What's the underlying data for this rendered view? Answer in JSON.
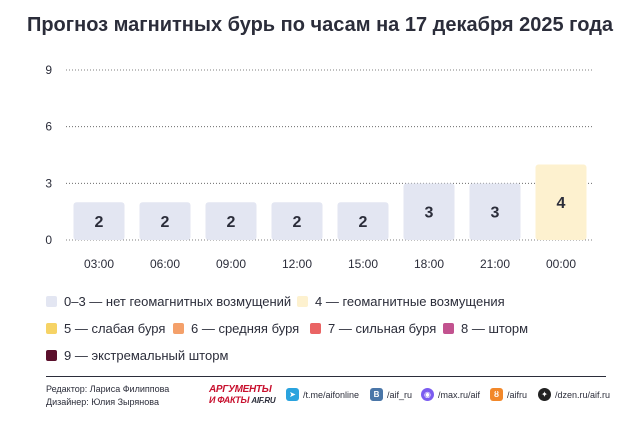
{
  "header": {
    "title": "Прогноз магнитных бурь по часам на 17 декабря 2025 года"
  },
  "chart_data": {
    "type": "bar",
    "title": "Прогноз магнитных бурь по часам на 17 декабря 2025 года",
    "categories": [
      "03:00",
      "06:00",
      "09:00",
      "12:00",
      "15:00",
      "18:00",
      "21:00",
      "00:00"
    ],
    "values": [
      2,
      2,
      2,
      2,
      2,
      3,
      3,
      4
    ],
    "data_labels": [
      "2",
      "2",
      "2",
      "2",
      "2",
      "3",
      "3",
      "4"
    ],
    "y_ticks": [
      "0",
      "3",
      "6",
      "9"
    ],
    "ylim": [
      0,
      9
    ],
    "grid": "dotted horizontal",
    "legend_placement": "bottom",
    "xlabel": "",
    "ylabel": "",
    "colors": {
      "0-3": "#e3e6f2",
      "4": "#fdf1cf",
      "grid": "#555555",
      "text": "#2b2d3a"
    }
  },
  "legend": [
    {
      "label": "0–3 — нет геомагнитных возмущений",
      "color": "#e3e6f2"
    },
    {
      "label": "4 — геомагнитные возмущения",
      "color": "#fdf1cf"
    },
    {
      "label": "5 — слабая буря",
      "color": "#f6d365"
    },
    {
      "label": "6 — средняя буря",
      "color": "#f4a06a"
    },
    {
      "label": "7 — сильная буря",
      "color": "#ea6464"
    },
    {
      "label": "8 — шторм",
      "color": "#c2528f"
    },
    {
      "label": "9 — экстремальный шторм",
      "color": "#5a0f2b"
    }
  ],
  "footer": {
    "editor": "Редактор: Лариса Филиппова",
    "designer": "Дизайнер: Юлия Зырянова",
    "logo_line1": "АРГУМЕНТЫ",
    "logo_line2": "И ФАКТЫ",
    "logo_domain": "AIF.RU",
    "social": [
      {
        "icon": "telegram-icon",
        "glyph": "➤",
        "label": "/t.me/aifonline",
        "color": "#2aa3de"
      },
      {
        "icon": "vk-icon",
        "glyph": "В",
        "label": "/aif_ru",
        "color": "#4a76a8"
      },
      {
        "icon": "max-icon",
        "glyph": "◉",
        "label": "/max.ru/aif",
        "color": "#7b5cf0"
      },
      {
        "icon": "ok-icon",
        "glyph": "ȣ",
        "label": "/aifru",
        "color": "#f2882a"
      },
      {
        "icon": "dzen-icon",
        "glyph": "✦",
        "label": "/dzen.ru/aif.ru",
        "color": "#222222"
      }
    ]
  }
}
